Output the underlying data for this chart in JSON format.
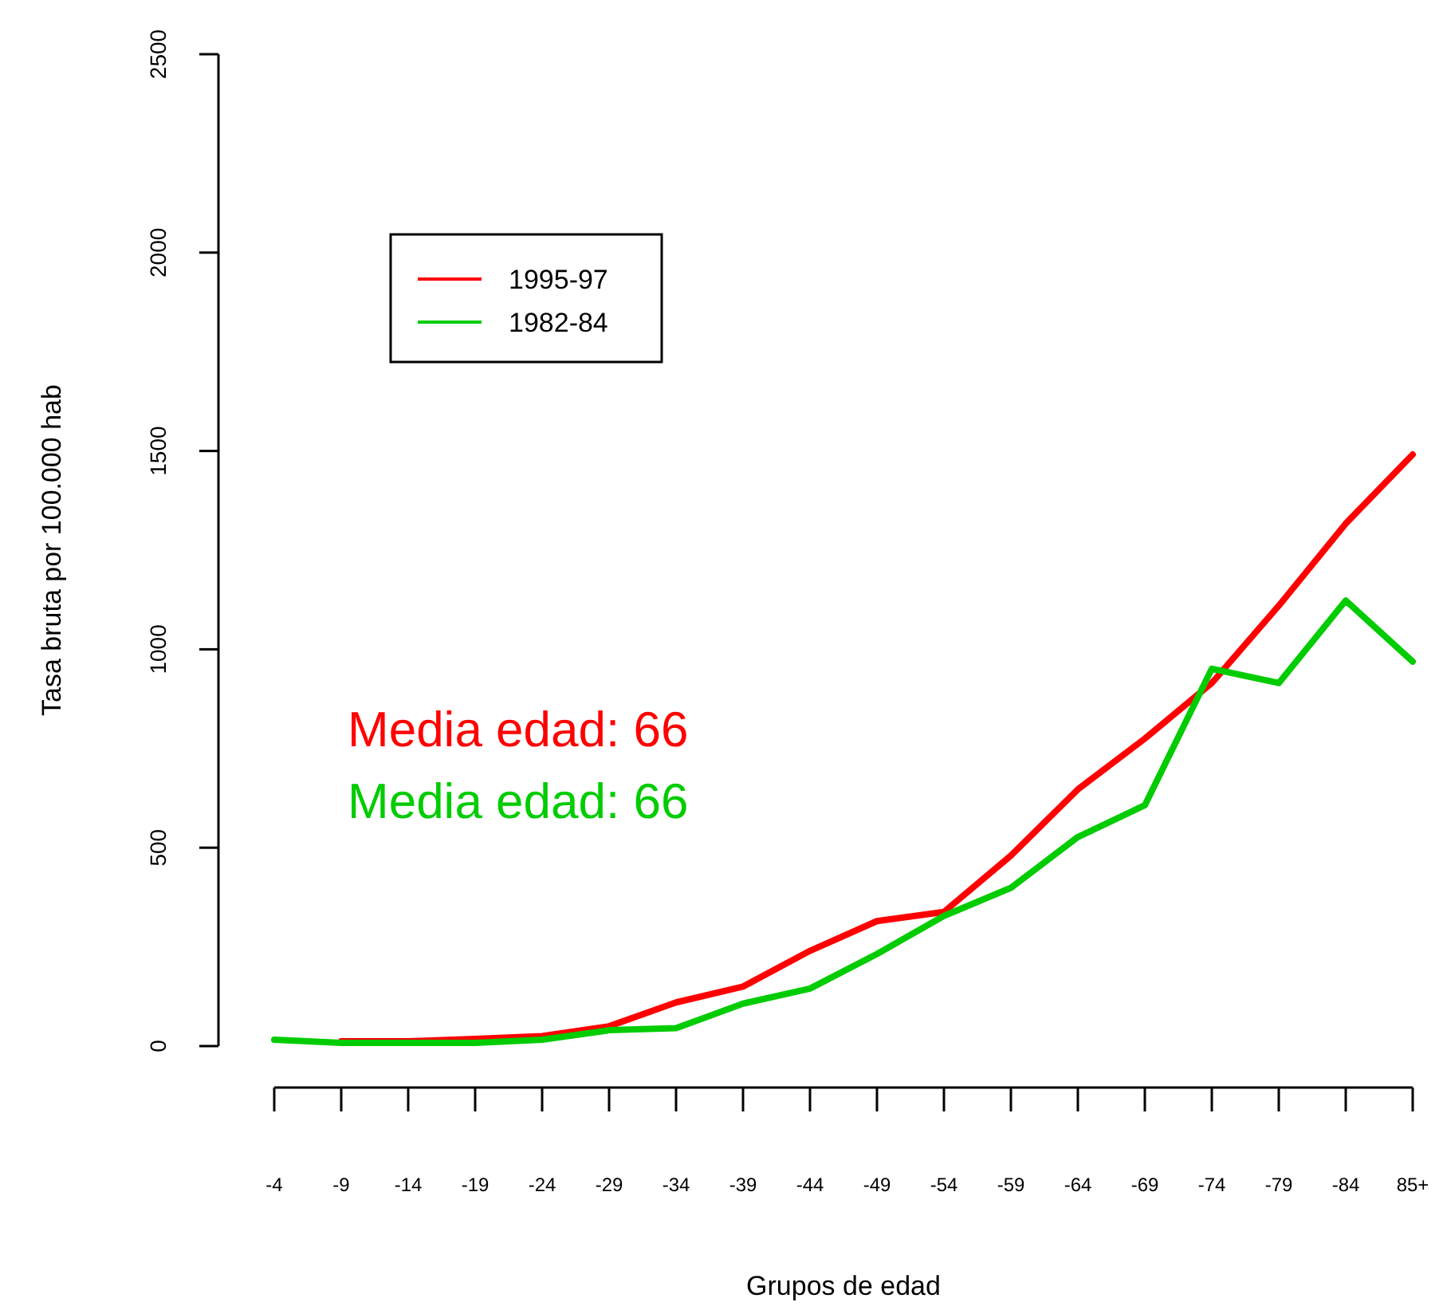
{
  "chart_data": {
    "type": "line",
    "xlabel": "Grupos de edad",
    "ylabel": "Tasa bruta por 100.000 hab",
    "categories": [
      "-4",
      "-9",
      "-14",
      "-19",
      "-24",
      "-29",
      "-34",
      "-39",
      "-44",
      "-49",
      "-54",
      "-59",
      "-64",
      "-69",
      "-74",
      "-79",
      "-84",
      "85+"
    ],
    "series": [
      {
        "name": "1995-97",
        "color": "#ff0000",
        "values": [
          null,
          12,
          12,
          18,
          25,
          50,
          110,
          150,
          240,
          315,
          338,
          480,
          647,
          775,
          915,
          1110,
          1317,
          1491
        ]
      },
      {
        "name": "1982-84",
        "color": "#00cc00",
        "values": [
          16,
          8,
          8,
          8,
          16,
          40,
          45,
          107,
          145,
          232,
          328,
          399,
          527,
          607,
          951,
          915,
          1123,
          969
        ]
      }
    ],
    "ylim": [
      0,
      2500
    ],
    "yticks": [
      0,
      500,
      1000,
      1500,
      2000,
      2500
    ],
    "grid": false,
    "legend": "top left",
    "line_style": "solid",
    "annotations": [
      "Media edad: 66",
      "Media edad: 66"
    ]
  }
}
